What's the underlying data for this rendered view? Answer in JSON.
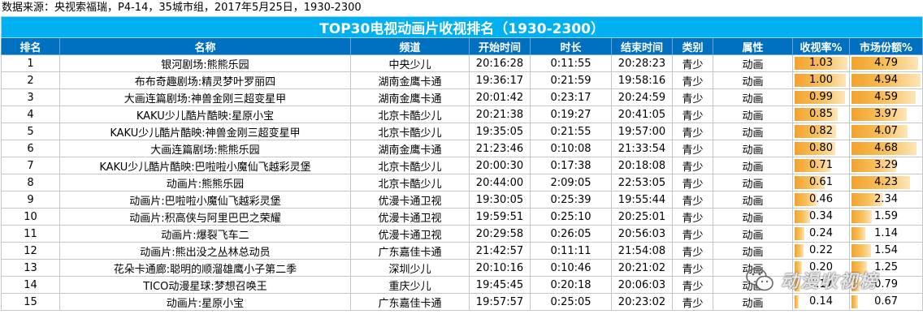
{
  "source": "数据来源：央视索福瑞，P4-14，35城市组，2017年5月25日，1930-2300",
  "title": "TOP30电视动画片收视排名（1930-2300）",
  "columns": [
    "排名",
    "名称",
    "频道",
    "开始时间",
    "时长",
    "结束时间",
    "类别",
    "属性",
    "收视率%",
    "市场份额%"
  ],
  "rows": [
    {
      "rank": "1",
      "name": "银河剧场:熊熊乐园",
      "channel": "中央少儿",
      "start": "20:16:28",
      "duration": "0:11:55",
      "end": "20:28:23",
      "category": "青少",
      "attr": "动画",
      "rating": "1.03",
      "share": "4.79"
    },
    {
      "rank": "2",
      "name": "布布奇趣剧场:精灵梦叶罗丽四",
      "channel": "湖南金鹰卡通",
      "start": "19:36:17",
      "duration": "0:21:59",
      "end": "19:58:16",
      "category": "青少",
      "attr": "动画",
      "rating": "1.00",
      "share": "4.94"
    },
    {
      "rank": "3",
      "name": "大画连篇剧场:神兽金刚三超变星甲",
      "channel": "湖南金鹰卡通",
      "start": "20:01:42",
      "duration": "0:23:17",
      "end": "20:24:59",
      "category": "青少",
      "attr": "动画",
      "rating": "0.99",
      "share": "4.59"
    },
    {
      "rank": "4",
      "name": "KAKU少儿酷片酷映:星原小宝",
      "channel": "北京卡酷少儿",
      "start": "20:21:38",
      "duration": "0:19:27",
      "end": "20:41:05",
      "category": "青少",
      "attr": "动画",
      "rating": "0.85",
      "share": "3.97"
    },
    {
      "rank": "5",
      "name": "KAKU少儿酷片酷映:神兽金刚三超变星甲",
      "channel": "北京卡酷少儿",
      "start": "19:35:05",
      "duration": "0:21:55",
      "end": "19:57:00",
      "category": "青少",
      "attr": "动画",
      "rating": "0.82",
      "share": "4.07"
    },
    {
      "rank": "6",
      "name": "大画连篇剧场:熊熊乐园",
      "channel": "湖南金鹰卡通",
      "start": "21:23:46",
      "duration": "0:10:08",
      "end": "21:33:54",
      "category": "青少",
      "attr": "动画",
      "rating": "0.80",
      "share": "4.68"
    },
    {
      "rank": "7",
      "name": "KAKU少儿酷片酷映:巴啦啦小魔仙飞越彩灵堡",
      "channel": "北京卡酷少儿",
      "start": "20:00:30",
      "duration": "0:17:38",
      "end": "20:18:08",
      "category": "青少",
      "attr": "动画",
      "rating": "0.71",
      "share": "3.29"
    },
    {
      "rank": "8",
      "name": "动画片:熊熊乐园",
      "channel": "北京卡酷少儿",
      "start": "20:44:00",
      "duration": "2:09:05",
      "end": "22:53:05",
      "category": "青少",
      "attr": "动画",
      "rating": "0.61",
      "share": "4.23"
    },
    {
      "rank": "9",
      "name": "动画片:巴啦啦小魔仙飞越彩灵堡",
      "channel": "优漫卡通卫视",
      "start": "19:30:05",
      "duration": "0:25:39",
      "end": "19:55:44",
      "category": "青少",
      "attr": "动画",
      "rating": "0.46",
      "share": "2.34"
    },
    {
      "rank": "10",
      "name": "动画片:积高侠与阿里巴巴之荣耀",
      "channel": "优漫卡通卫视",
      "start": "19:59:51",
      "duration": "0:25:10",
      "end": "20:25:01",
      "category": "青少",
      "attr": "动画",
      "rating": "0.34",
      "share": "1.59"
    },
    {
      "rank": "11",
      "name": "动画片:爆裂飞车二",
      "channel": "优漫卡通卫视",
      "start": "20:29:58",
      "duration": "0:26:05",
      "end": "20:56:03",
      "category": "青少",
      "attr": "动画",
      "rating": "0.24",
      "share": "1.14"
    },
    {
      "rank": "12",
      "name": "动画片:熊出没之丛林总动员",
      "channel": "广东嘉佳卡通",
      "start": "21:42:57",
      "duration": "0:11:11",
      "end": "21:54:08",
      "category": "青少",
      "attr": "动画",
      "rating": "0.22",
      "share": "1.54"
    },
    {
      "rank": "13",
      "name": "花朵卡通廊:聪明的顺溜雄鹰小子第二季",
      "channel": "深圳少儿",
      "start": "20:10:16",
      "duration": "0:10:46",
      "end": "20:21:02",
      "category": "青少",
      "attr": "动画",
      "rating": "0.20",
      "share": "1.25"
    },
    {
      "rank": "14",
      "name": "TICO动漫星球:梦想召唤王",
      "channel": "重庆少儿",
      "start": "19:45:45",
      "duration": "0:20:18",
      "end": "20:06:03",
      "category": "青少",
      "attr": "动画",
      "rating": "0.17",
      "share": "0.79"
    },
    {
      "rank": "15",
      "name": "动画片:星原小宝",
      "channel": "广东嘉佳卡通",
      "start": "19:57:57",
      "duration": "0:25:05",
      "end": "20:23:02",
      "category": "青少",
      "attr": "动画",
      "rating": "0.14",
      "share": "0.67"
    }
  ],
  "colors": {
    "title_bg": "#00b0f0",
    "header_bg": "#0070c0",
    "bar": "#f3a22c"
  },
  "watermark": {
    "text": "动漫收视榜",
    "icon": "wechat-icon"
  }
}
